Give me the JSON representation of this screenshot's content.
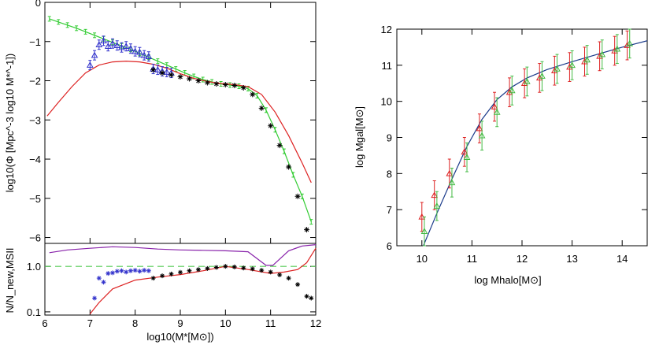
{
  "chart_data": [
    {
      "id": "smf_main",
      "type": "line",
      "xlabel": "",
      "ylabel": "log10(Φ [Mpc^-3 log10 M*^-1])",
      "xlim": [
        6,
        12
      ],
      "ylim": [
        -6.15,
        0
      ],
      "x_ticks": [
        "6",
        "7",
        "8",
        "9",
        "10",
        "11",
        "12"
      ],
      "y_ticks": [
        "0",
        "−1",
        "−2",
        "−3",
        "−4",
        "−5",
        "−6"
      ],
      "y_tick_values": [
        0,
        -1,
        -2,
        -3,
        -4,
        -5,
        -6
      ],
      "series": [
        {
          "role": "green-line-with-errorbars",
          "color": "#33cc33",
          "x": [
            6.1,
            6.3,
            6.5,
            6.7,
            6.9,
            7.1,
            7.3,
            7.5,
            7.7,
            7.9,
            8.1,
            8.3,
            8.5,
            8.7,
            8.9,
            9.1,
            9.3,
            9.5,
            9.7,
            9.9,
            10.1,
            10.3,
            10.5,
            10.7,
            10.9,
            11.1,
            11.3,
            11.5,
            11.7,
            11.9
          ],
          "y": [
            -0.42,
            -0.5,
            -0.58,
            -0.66,
            -0.75,
            -0.84,
            -0.93,
            -1.02,
            -1.11,
            -1.2,
            -1.3,
            -1.4,
            -1.5,
            -1.6,
            -1.7,
            -1.8,
            -1.89,
            -1.97,
            -2.03,
            -2.08,
            -2.11,
            -2.14,
            -2.2,
            -2.38,
            -2.75,
            -3.25,
            -3.8,
            -4.4,
            -4.95,
            -5.6
          ]
        },
        {
          "role": "red-line",
          "color": "#dd2222",
          "x": [
            6.05,
            6.3,
            6.6,
            6.9,
            7.2,
            7.5,
            7.8,
            8.1,
            8.4,
            8.7,
            9.0,
            9.3,
            9.6,
            9.9,
            10.2,
            10.5,
            10.8,
            11.1,
            11.4,
            11.7,
            11.9
          ],
          "y": [
            -2.9,
            -2.55,
            -2.15,
            -1.8,
            -1.6,
            -1.52,
            -1.5,
            -1.52,
            -1.58,
            -1.68,
            -1.82,
            -1.94,
            -2.02,
            -2.07,
            -2.1,
            -2.15,
            -2.35,
            -2.8,
            -3.4,
            -4.1,
            -4.6
          ]
        },
        {
          "role": "blue-triangles",
          "color": "#3333cc",
          "x": [
            7.0,
            7.1,
            7.2,
            7.3,
            7.4,
            7.5,
            7.6,
            7.7,
            7.8,
            7.9,
            8.0,
            8.1,
            8.2,
            8.3,
            8.4,
            8.5,
            8.6,
            8.7,
            8.8
          ],
          "y": [
            -1.6,
            -1.35,
            -1.08,
            -0.98,
            -1.12,
            -1.05,
            -1.1,
            -1.15,
            -1.12,
            -1.18,
            -1.25,
            -1.27,
            -1.35,
            -1.38,
            -1.7,
            -1.72,
            -1.76,
            -1.78,
            -1.8
          ]
        },
        {
          "role": "black-stars",
          "color": "#000000",
          "x": [
            8.4,
            8.6,
            8.8,
            9.0,
            9.2,
            9.4,
            9.6,
            9.8,
            10.0,
            10.2,
            10.4,
            10.6,
            10.8,
            11.0,
            11.2,
            11.4,
            11.6,
            11.8
          ],
          "y": [
            -1.72,
            -1.8,
            -1.85,
            -1.9,
            -1.95,
            -2.0,
            -2.05,
            -2.08,
            -2.1,
            -2.12,
            -2.18,
            -2.35,
            -2.7,
            -3.15,
            -3.65,
            -4.2,
            -4.95,
            -5.8
          ]
        }
      ]
    },
    {
      "id": "smf_ratio",
      "type": "line",
      "xlabel": "log10(M*[M⊙])",
      "ylabel": "N/N_new,MSII",
      "xlim": [
        6,
        12
      ],
      "log_y": true,
      "ylim": [
        0.085,
        3.2
      ],
      "x_ticks": [
        "6",
        "7",
        "8",
        "9",
        "10",
        "11",
        "12"
      ],
      "x_tick_values": [
        6,
        7,
        8,
        9,
        10,
        11,
        12
      ],
      "y_ticks": [
        "1.0",
        "0.1"
      ],
      "y_tick_values": [
        1.0,
        0.1
      ],
      "series": [
        {
          "role": "green-dashed-reference",
          "color": "#55cc55",
          "x": [
            6,
            12
          ],
          "y": [
            1.0,
            1.0
          ]
        },
        {
          "role": "purple-line",
          "color": "#8822aa",
          "x": [
            6.1,
            6.5,
            7.0,
            7.5,
            8.0,
            8.5,
            9.0,
            9.5,
            10.0,
            10.5,
            10.9,
            11.05,
            11.4,
            11.7,
            12.0
          ],
          "y": [
            2.0,
            2.3,
            2.5,
            2.7,
            2.6,
            2.4,
            2.3,
            2.25,
            2.2,
            2.1,
            1.05,
            1.05,
            2.2,
            2.8,
            3.0
          ]
        },
        {
          "role": "red-line",
          "color": "#dd2222",
          "x": [
            7.0,
            7.2,
            7.5,
            8.0,
            8.5,
            9.0,
            9.5,
            10.0,
            10.5,
            11.0,
            11.3,
            11.6,
            11.8,
            12.0
          ],
          "y": [
            0.09,
            0.16,
            0.32,
            0.5,
            0.58,
            0.66,
            0.8,
            1.0,
            0.85,
            0.7,
            0.75,
            0.85,
            1.2,
            2.5
          ]
        },
        {
          "role": "blue-stars",
          "color": "#3333cc",
          "x": [
            7.1,
            7.2,
            7.3,
            7.4,
            7.5,
            7.6,
            7.7,
            7.8,
            7.9,
            8.0,
            8.1,
            8.2,
            8.3
          ],
          "y": [
            0.2,
            0.55,
            0.45,
            0.7,
            0.72,
            0.78,
            0.8,
            0.75,
            0.8,
            0.82,
            0.78,
            0.82,
            0.8
          ]
        },
        {
          "role": "black-stars",
          "color": "#000000",
          "x": [
            8.4,
            8.6,
            8.8,
            9.0,
            9.2,
            9.4,
            9.6,
            9.8,
            10.0,
            10.2,
            10.4,
            10.6,
            10.8,
            11.0,
            11.2,
            11.4,
            11.6,
            11.8,
            11.9
          ],
          "y": [
            0.55,
            0.62,
            0.68,
            0.74,
            0.8,
            0.85,
            0.9,
            0.95,
            1.0,
            0.97,
            0.92,
            0.88,
            0.82,
            0.75,
            0.65,
            0.55,
            0.4,
            0.22,
            0.2
          ]
        }
      ]
    },
    {
      "id": "halo_galaxy",
      "type": "line",
      "xlabel": "log Mhalo[M⊙]",
      "ylabel": "log Mgal[M⊙]",
      "xlim": [
        9.5,
        14.5
      ],
      "ylim": [
        6,
        12
      ],
      "x_ticks": [
        "10",
        "11",
        "12",
        "13",
        "14"
      ],
      "x_tick_values": [
        10,
        11,
        12,
        13,
        14
      ],
      "y_ticks": [
        "6",
        "7",
        "8",
        "9",
        "10",
        "11",
        "12"
      ],
      "y_tick_values": [
        6,
        7,
        8,
        9,
        10,
        11,
        12
      ],
      "series": [
        {
          "role": "blue-curve",
          "color": "#1a3a8a",
          "x": [
            10.0,
            10.3,
            10.6,
            10.9,
            11.2,
            11.5,
            11.8,
            12.1,
            12.5,
            13.0,
            13.5,
            14.0,
            14.5
          ],
          "y": [
            5.9,
            6.9,
            7.85,
            8.75,
            9.5,
            10.05,
            10.4,
            10.65,
            10.88,
            11.1,
            11.3,
            11.5,
            11.68
          ]
        },
        {
          "role": "red-triangles",
          "color": "#dd2222",
          "x": [
            10.0,
            10.25,
            10.55,
            10.85,
            11.15,
            11.45,
            11.75,
            12.05,
            12.35,
            12.65,
            12.95,
            13.25,
            13.55,
            13.85,
            14.1
          ],
          "y": [
            6.8,
            7.4,
            8.0,
            8.6,
            9.25,
            9.85,
            10.25,
            10.5,
            10.65,
            10.85,
            10.95,
            11.1,
            11.25,
            11.4,
            11.55
          ],
          "err": 0.4
        },
        {
          "role": "green-triangles",
          "color": "#44bb44",
          "x": [
            10.05,
            10.3,
            10.6,
            10.9,
            11.2,
            11.5,
            11.8,
            12.1,
            12.4,
            12.7,
            13.0,
            13.3,
            13.6,
            13.9,
            14.15
          ],
          "y": [
            6.4,
            7.1,
            7.75,
            8.45,
            9.05,
            9.7,
            10.3,
            10.55,
            10.7,
            10.9,
            11.0,
            11.15,
            11.3,
            11.45,
            11.6
          ],
          "err": 0.4
        }
      ]
    }
  ]
}
